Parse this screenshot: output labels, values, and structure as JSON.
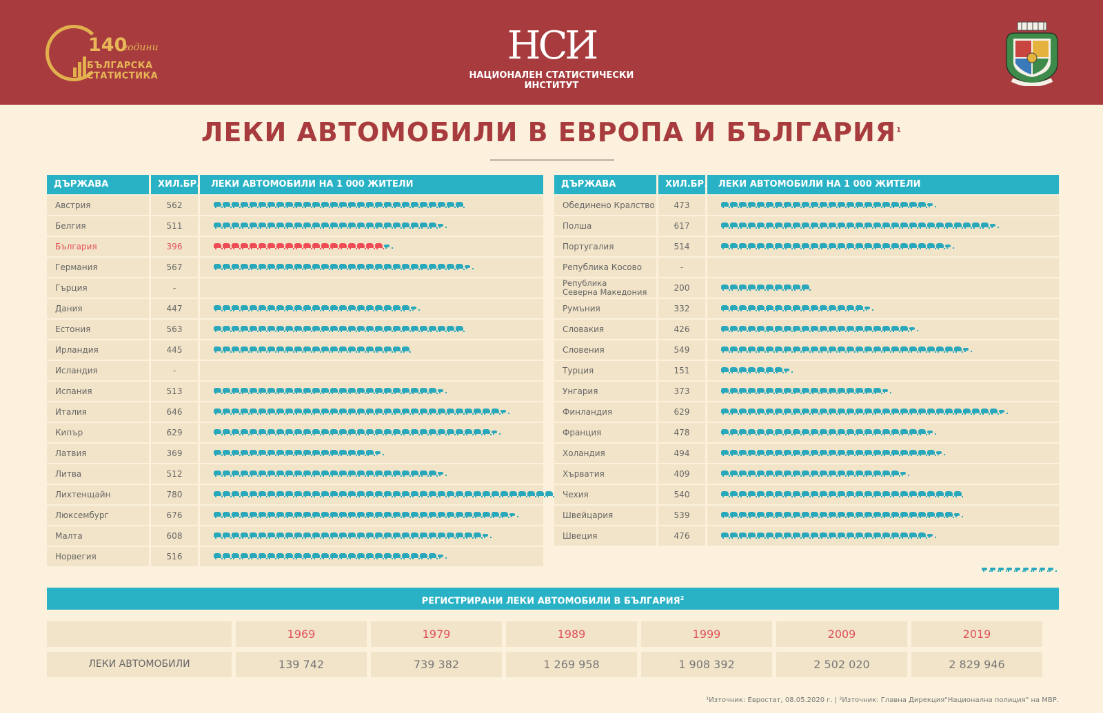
{
  "header": {
    "logo_left": {
      "number": "140",
      "years": "години",
      "line1": "БЪЛГАРСКА",
      "line2": "СТАТИСТИКА"
    },
    "logo_center": {
      "mark": "НСИ",
      "name": "НАЦИОНАЛЕН СТАТИСТИЧЕСКИ ИНСТИТУТ"
    },
    "colors": {
      "band": "#a73b3e",
      "gold": "#e8b757"
    }
  },
  "title": "ЛЕКИ АВТОМОБИЛИ В ЕВРОПА И БЪЛГАРИЯ",
  "title_sup": "1",
  "columns": {
    "country": "ДЪРЖАВА",
    "value": "ХИЛ.БР.",
    "bar": "ЛЕКИ АВТОМОБИЛИ НА 1 000 ЖИТЕЛИ"
  },
  "chart_data": [
    {
      "type": "bar",
      "unit_per_icon": 20,
      "left": [
        {
          "name": "Австрия",
          "value": "562",
          "n": 562
        },
        {
          "name": "Белгия",
          "value": "511",
          "n": 511
        },
        {
          "name": "България",
          "value": "396",
          "n": 396,
          "highlight": true
        },
        {
          "name": "Германия",
          "value": "567",
          "n": 567
        },
        {
          "name": "Гърция",
          "value": "-",
          "n": 0
        },
        {
          "name": "Дания",
          "value": "447",
          "n": 447
        },
        {
          "name": "Естония",
          "value": "563",
          "n": 563
        },
        {
          "name": "Ирландия",
          "value": "445",
          "n": 445
        },
        {
          "name": "Исландия",
          "value": "-",
          "n": 0
        },
        {
          "name": "Испания",
          "value": "513",
          "n": 513
        },
        {
          "name": "Италия",
          "value": "646",
          "n": 646
        },
        {
          "name": "Кипър",
          "value": "629",
          "n": 629
        },
        {
          "name": "Латвия",
          "value": "369",
          "n": 369
        },
        {
          "name": "Литва",
          "value": "512",
          "n": 512
        },
        {
          "name": "Лихтенщайн",
          "value": "780",
          "n": 780
        },
        {
          "name": "Люксембург",
          "value": "676",
          "n": 676
        },
        {
          "name": "Малта",
          "value": "608",
          "n": 608
        },
        {
          "name": "Норвегия",
          "value": "516",
          "n": 516
        }
      ],
      "right": [
        {
          "name": "Обединено Кралство",
          "value": "473",
          "n": 473
        },
        {
          "name": "Полша",
          "value": "617",
          "n": 617
        },
        {
          "name": "Португалия",
          "value": "514",
          "n": 514
        },
        {
          "name": "Република Косово",
          "value": "-",
          "n": 0
        },
        {
          "name": "Република Северна Македония",
          "name_l1": "Република",
          "name_l2": "Северна Македония",
          "value": "200",
          "n": 200
        },
        {
          "name": "Румъния",
          "value": "332",
          "n": 332
        },
        {
          "name": "Словакия",
          "value": "426",
          "n": 426
        },
        {
          "name": "Словения",
          "value": "549",
          "n": 549
        },
        {
          "name": "Турция",
          "value": "151",
          "n": 151
        },
        {
          "name": "Унгария",
          "value": "373",
          "n": 373
        },
        {
          "name": "Финландия",
          "value": "629",
          "n": 629
        },
        {
          "name": "Франция",
          "value": "478",
          "n": 478
        },
        {
          "name": "Холандия",
          "value": "494",
          "n": 494
        },
        {
          "name": "Хърватия",
          "value": "409",
          "n": 409
        },
        {
          "name": "Чехия",
          "value": "540",
          "n": 540
        },
        {
          "name": "Швейцария",
          "value": "539",
          "n": 539
        },
        {
          "name": "Швеция",
          "value": "476",
          "n": 476
        }
      ],
      "colors": {
        "bar": "#29a8bc",
        "highlight": "#ef4d55",
        "header": "#29b2c6"
      }
    },
    {
      "type": "table",
      "title": "РЕГИСТРИРАНИ ЛЕКИ АВТОМОБИЛИ В БЪЛГАРИЯ",
      "title_sup": "2",
      "row_label": "ЛЕКИ АВТОМОБИЛИ",
      "years": [
        "1969",
        "1979",
        "1989",
        "1999",
        "2009",
        "2019"
      ],
      "values": [
        "139 742",
        "739 382",
        "1 269 958",
        "1 908 392",
        "2 502 020",
        "2 829 946"
      ]
    }
  ],
  "footnote": "¹Източник: Евростат, 08.05.2020 г.  |  ²Източник: Главна Дирекция\"Национална полиция\" на МВР."
}
